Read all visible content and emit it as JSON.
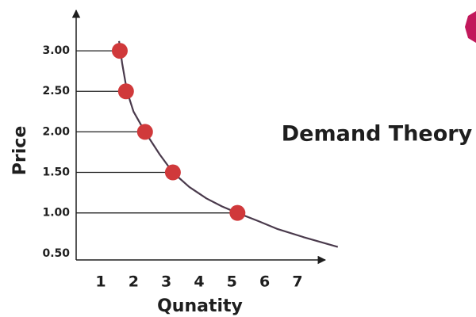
{
  "chart_data": {
    "type": "scatter",
    "title": "Demand Theory",
    "x_label": "Qunatity",
    "y_label": "Price",
    "x": [
      1.58,
      1.77,
      2.35,
      3.2,
      5.17
    ],
    "values": [
      3.0,
      2.5,
      2.0,
      1.5,
      1.0
    ],
    "color": "#d0393b",
    "curve": {
      "x": [
        1.56,
        1.65,
        1.8,
        2.0,
        2.35,
        2.8,
        3.2,
        3.7,
        4.22,
        4.7,
        5.17,
        5.8,
        6.4,
        7.2,
        8.23
      ],
      "y": [
        3.12,
        2.85,
        2.5,
        2.25,
        2.0,
        1.72,
        1.5,
        1.32,
        1.18,
        1.08,
        1.0,
        0.9,
        0.8,
        0.7,
        0.58
      ],
      "color": "#4a3a4c"
    },
    "xlim": [
      0.25,
      7.8
    ],
    "ylim": [
      0.42,
      3.48
    ],
    "xticks": [
      1,
      2,
      3,
      4,
      5,
      6,
      7
    ],
    "yticks": [
      {
        "value": 3.0,
        "label": "3.00"
      },
      {
        "value": 2.5,
        "label": "2.50"
      },
      {
        "value": 2.0,
        "label": "2.00"
      },
      {
        "value": 1.5,
        "label": "1.50"
      },
      {
        "value": 1.0,
        "label": "1.00"
      },
      {
        "value": 0.5,
        "label": "0.50"
      }
    ]
  }
}
